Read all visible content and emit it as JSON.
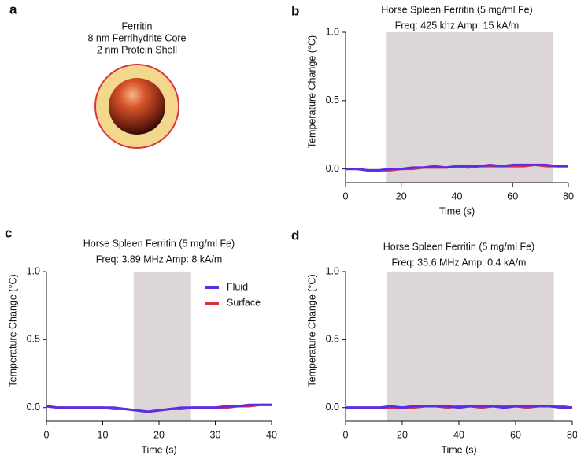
{
  "diagram": {
    "panel": "a",
    "lines": [
      "Ferritin",
      "8 nm Ferrihydrite Core",
      "2 nm Protein Shell"
    ]
  },
  "chart_data": [
    {
      "type": "line",
      "panel": "b",
      "title": "Horse Spleen Ferritin (5 mg/ml Fe)",
      "subtitle": "Freq: 425 khz Amp: 15 kA/m",
      "xlabel": "Time (s)",
      "ylabel": "Temperature Change (°C)",
      "x": [
        0,
        4,
        8,
        12,
        16,
        20,
        24,
        28,
        32,
        36,
        40,
        44,
        48,
        52,
        56,
        60,
        64,
        68,
        72,
        76,
        80
      ],
      "series": [
        {
          "name": "Fluid",
          "color": "#5a2ee6",
          "values": [
            0.0,
            0.0,
            -0.01,
            -0.01,
            0.0,
            0.0,
            0.01,
            0.01,
            0.02,
            0.01,
            0.02,
            0.02,
            0.02,
            0.03,
            0.02,
            0.03,
            0.03,
            0.03,
            0.03,
            0.02,
            0.02
          ]
        },
        {
          "name": "Surface",
          "color": "#d9304a",
          "values": [
            0.0,
            0.0,
            -0.01,
            -0.01,
            -0.01,
            0.0,
            0.0,
            0.01,
            0.01,
            0.01,
            0.02,
            0.01,
            0.02,
            0.02,
            0.02,
            0.02,
            0.02,
            0.03,
            0.02,
            0.02,
            0.02
          ]
        }
      ],
      "shaded": [
        14.5,
        74.5
      ],
      "shade_color": "#dcd6d8",
      "xlim": [
        0,
        80
      ],
      "xticks": [
        0,
        20,
        40,
        60,
        80
      ],
      "ylim": [
        -0.1,
        1.0
      ],
      "yticks": [
        {
          "value": 0,
          "label": "0.0"
        },
        {
          "value": 0.5,
          "label": "0.5"
        },
        {
          "value": 1,
          "label": "1.0"
        }
      ]
    },
    {
      "type": "line",
      "panel": "c",
      "title": "Horse Spleen Ferritin (5 mg/ml Fe)",
      "subtitle": "Freq: 3.89 MHz Amp: 8 kA/m",
      "xlabel": "Time (s)",
      "ylabel": "Temperature Change (°C)",
      "x": [
        0,
        2,
        4,
        6,
        8,
        10,
        12,
        14,
        16,
        18,
        20,
        22,
        24,
        26,
        28,
        30,
        32,
        34,
        36,
        38,
        40
      ],
      "series": [
        {
          "name": "Fluid",
          "color": "#5a2ee6",
          "values": [
            0.01,
            0.0,
            0.0,
            0.0,
            0.0,
            0.0,
            0.0,
            -0.01,
            -0.02,
            -0.03,
            -0.02,
            -0.01,
            0.0,
            0.0,
            0.0,
            0.0,
            0.01,
            0.01,
            0.02,
            0.02,
            0.02
          ]
        },
        {
          "name": "Surface",
          "color": "#d9304a",
          "values": [
            0.01,
            0.0,
            0.0,
            0.0,
            0.0,
            0.0,
            -0.01,
            -0.01,
            -0.02,
            -0.03,
            -0.02,
            -0.01,
            -0.01,
            0.0,
            0.0,
            0.0,
            0.0,
            0.01,
            0.01,
            0.02,
            0.02
          ]
        }
      ],
      "legend": "top-right",
      "shaded": [
        15.5,
        25.7
      ],
      "shade_color": "#dcd6d8",
      "xlim": [
        0,
        40
      ],
      "xticks": [
        0,
        10,
        20,
        30,
        40
      ],
      "ylim": [
        -0.1,
        1.0
      ],
      "yticks": [
        {
          "value": 0,
          "label": "0.0"
        },
        {
          "value": 0.5,
          "label": "0.5"
        },
        {
          "value": 1,
          "label": "1.0"
        }
      ]
    },
    {
      "type": "line",
      "panel": "d",
      "title": "Horse Spleen Ferritin (5 mg/ml Fe)",
      "subtitle": "Freq: 35.6 MHz Amp: 0.4 kA/m",
      "xlabel": "Time (s)",
      "ylabel": "Temperature Change (°C)",
      "x": [
        0,
        4,
        8,
        12,
        16,
        20,
        24,
        28,
        32,
        36,
        40,
        44,
        48,
        52,
        56,
        60,
        64,
        68,
        72,
        76,
        80
      ],
      "series": [
        {
          "name": "Fluid",
          "color": "#5a2ee6",
          "values": [
            0.0,
            0.0,
            0.0,
            0.0,
            0.01,
            0.0,
            0.01,
            0.01,
            0.01,
            0.01,
            0.0,
            0.01,
            0.01,
            0.01,
            0.0,
            0.01,
            0.01,
            0.01,
            0.01,
            0.0,
            0.0
          ]
        },
        {
          "name": "Surface",
          "color": "#d9304a",
          "values": [
            0.0,
            0.0,
            0.0,
            0.0,
            0.0,
            0.0,
            0.0,
            0.01,
            0.01,
            0.0,
            0.01,
            0.01,
            0.0,
            0.01,
            0.01,
            0.01,
            0.0,
            0.01,
            0.01,
            0.01,
            0.0
          ]
        }
      ],
      "shaded": [
        14.5,
        73.5
      ],
      "shade_color": "#dcd6d8",
      "xlim": [
        0,
        80
      ],
      "xticks": [
        0,
        20,
        40,
        60,
        80
      ],
      "ylim": [
        -0.1,
        1.0
      ],
      "yticks": [
        {
          "value": 0,
          "label": "0.0"
        },
        {
          "value": 0.5,
          "label": "0.5"
        },
        {
          "value": 1,
          "label": "1.0"
        }
      ]
    }
  ]
}
